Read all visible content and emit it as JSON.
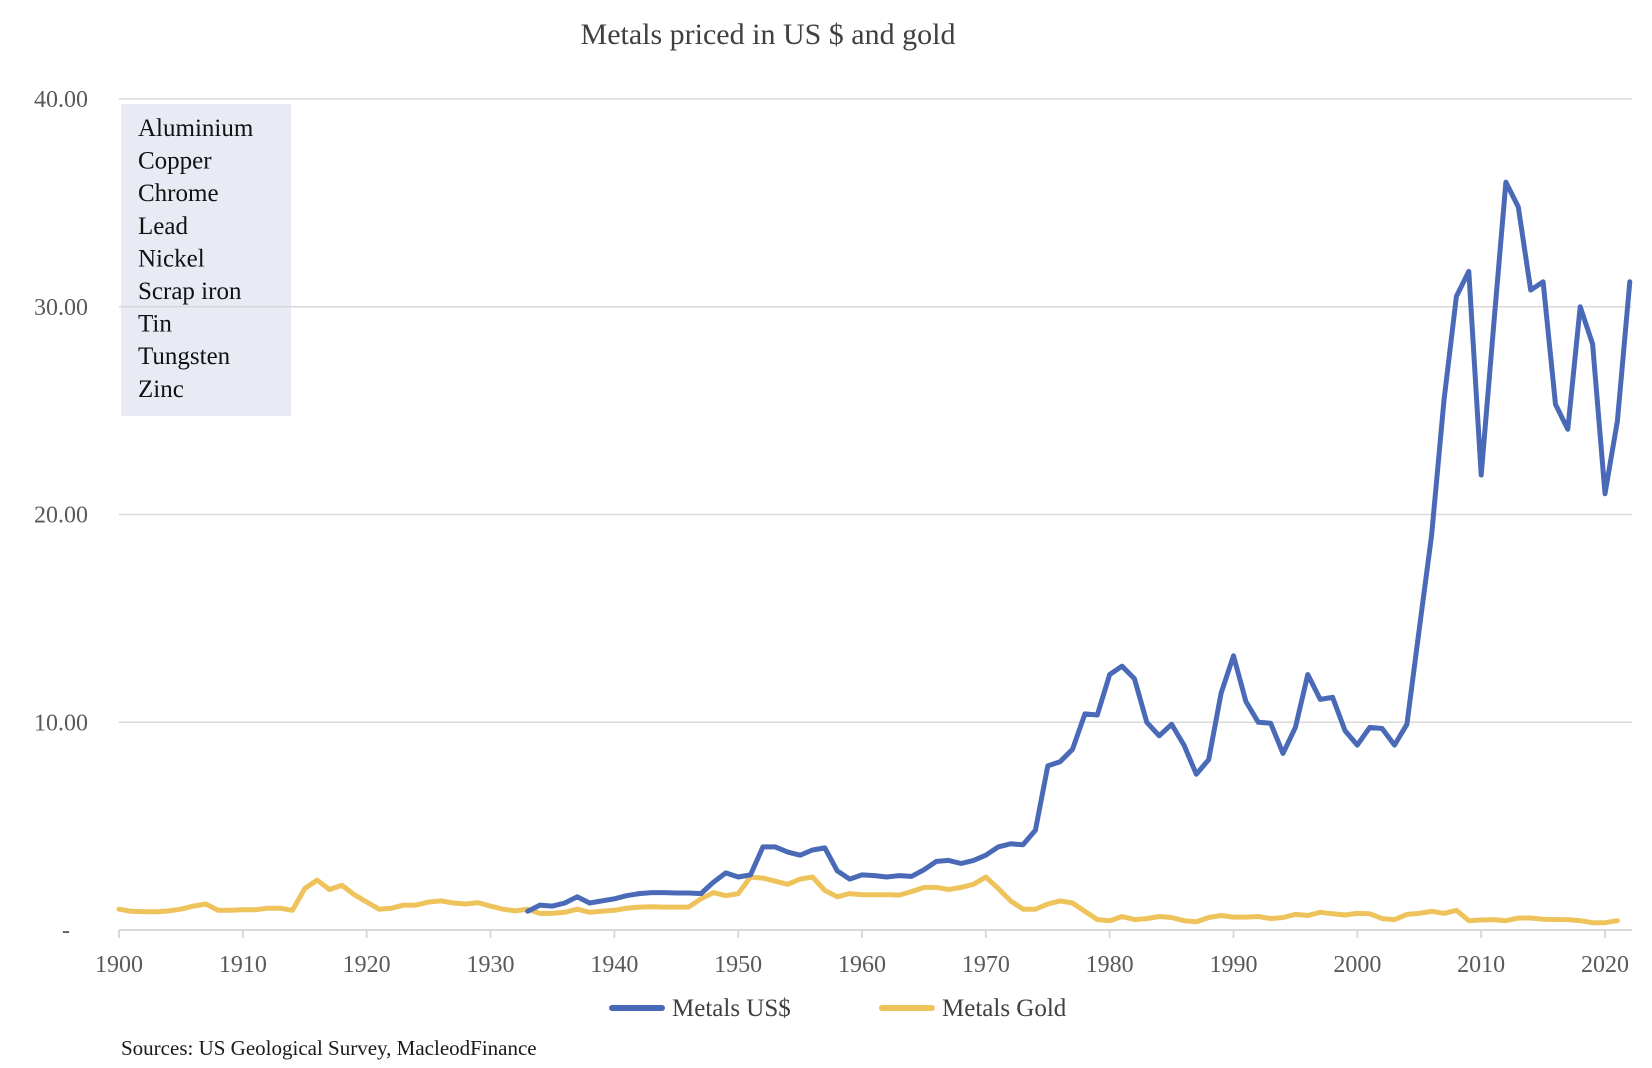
{
  "chart_data": {
    "type": "line",
    "title": "Metals priced in US $ and gold",
    "xlabel": "",
    "ylabel": "",
    "xlim": [
      1900,
      2021
    ],
    "ylim": [
      0,
      40
    ],
    "grid": true,
    "legend_position": "bottom-center",
    "y_ticks": [
      {
        "value": 0,
        "label": "-"
      },
      {
        "value": 10,
        "label": "10.00"
      },
      {
        "value": 20,
        "label": "20.00"
      },
      {
        "value": 30,
        "label": "30.00"
      },
      {
        "value": 40,
        "label": "40.00"
      }
    ],
    "x_ticks": [
      1900,
      1910,
      1920,
      1930,
      1940,
      1950,
      1960,
      1970,
      1980,
      1990,
      2000,
      2010,
      2020
    ],
    "annotation_box": {
      "items": [
        "Aluminium",
        "Copper",
        "Chrome",
        "Lead",
        "Nickel",
        "Scrap iron",
        "Tin",
        "Tungsten",
        "Zinc"
      ],
      "background": "#e8ebf4"
    },
    "source": "Sources: US Geological Survey, MacleodFinance",
    "series": [
      {
        "name": "Metals US$",
        "color": "#4a6ab8",
        "start_year": 1933,
        "values": [
          0.9,
          1.2,
          1.15,
          1.3,
          1.6,
          1.3,
          1.4,
          1.5,
          1.65,
          1.75,
          1.8,
          1.8,
          1.78,
          1.78,
          1.75,
          2.3,
          2.75,
          2.55,
          2.65,
          4.0,
          4.0,
          3.75,
          3.6,
          3.85,
          3.95,
          2.85,
          2.45,
          2.65,
          2.62,
          2.55,
          2.62,
          2.58,
          2.9,
          3.3,
          3.35,
          3.2,
          3.35,
          3.6,
          4.0,
          4.15,
          4.1,
          4.8,
          7.9,
          8.1,
          8.7,
          10.4,
          10.35,
          12.3,
          12.7,
          12.1,
          10.0,
          9.35,
          9.9,
          8.9,
          7.5,
          8.2,
          11.4,
          13.2,
          11.0,
          10.0,
          9.95,
          8.5,
          9.75,
          12.3,
          11.1,
          11.2,
          9.6,
          8.9,
          9.75,
          9.7,
          8.9,
          9.9,
          14.5,
          19.0,
          25.5,
          30.5,
          31.7,
          21.9,
          29.0,
          36.0,
          34.8,
          30.8,
          31.2,
          25.3,
          24.1,
          30.0,
          28.2,
          21.0,
          24.5,
          31.2
        ]
      },
      {
        "name": "Metals Gold",
        "color": "#eec35c",
        "start_year": 1900,
        "values": [
          1.0,
          0.9,
          0.88,
          0.88,
          0.92,
          1.0,
          1.15,
          1.25,
          0.95,
          0.95,
          0.97,
          0.97,
          1.05,
          1.05,
          0.95,
          2.0,
          2.4,
          1.95,
          2.15,
          1.7,
          1.35,
          1.0,
          1.05,
          1.2,
          1.2,
          1.35,
          1.4,
          1.3,
          1.25,
          1.32,
          1.15,
          1.0,
          0.92,
          1.0,
          0.8,
          0.8,
          0.85,
          1.0,
          0.85,
          0.9,
          0.95,
          1.05,
          1.1,
          1.12,
          1.1,
          1.1,
          1.1,
          1.5,
          1.8,
          1.65,
          1.75,
          2.55,
          2.5,
          2.35,
          2.2,
          2.45,
          2.55,
          1.9,
          1.6,
          1.75,
          1.7,
          1.7,
          1.7,
          1.68,
          1.85,
          2.05,
          2.05,
          1.95,
          2.05,
          2.2,
          2.55,
          2.0,
          1.4,
          1.0,
          1.0,
          1.25,
          1.4,
          1.3,
          0.9,
          0.5,
          0.45,
          0.65,
          0.5,
          0.55,
          0.65,
          0.6,
          0.45,
          0.4,
          0.6,
          0.7,
          0.62,
          0.62,
          0.65,
          0.55,
          0.6,
          0.75,
          0.7,
          0.85,
          0.78,
          0.72,
          0.8,
          0.78,
          0.55,
          0.5,
          0.75,
          0.8,
          0.9,
          0.8,
          0.95,
          0.45,
          0.48,
          0.5,
          0.45,
          0.58,
          0.58,
          0.52,
          0.5,
          0.5,
          0.45,
          0.35,
          0.35,
          0.45
        ]
      }
    ]
  }
}
